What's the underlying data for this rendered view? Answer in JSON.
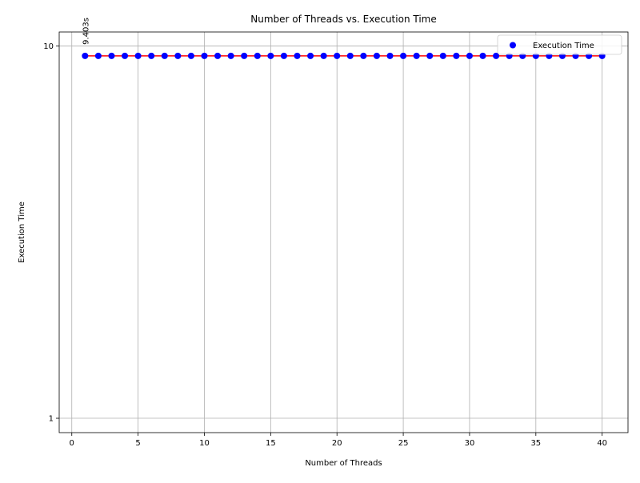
{
  "chart_data": {
    "type": "scatter",
    "title": "Number of Threads vs. Execution Time",
    "xlabel": "Number of Threads",
    "ylabel": "Execution Time",
    "xlim": [
      -0.95,
      41.95
    ],
    "ylim": [
      0.915,
      10.9
    ],
    "yscale": "log",
    "grid": true,
    "legend_position": "top-right",
    "x_ticks": [
      0,
      5,
      10,
      15,
      20,
      25,
      30,
      35,
      40
    ],
    "y_ticks": [
      1,
      10
    ],
    "series": [
      {
        "name": "Execution Time",
        "marker_color": "#0000ff",
        "x": [
          1,
          2,
          3,
          4,
          5,
          6,
          7,
          8,
          9,
          10,
          11,
          12,
          13,
          14,
          15,
          16,
          17,
          18,
          19,
          20,
          21,
          22,
          23,
          24,
          25,
          26,
          27,
          28,
          29,
          30,
          31,
          32,
          33,
          34,
          35,
          36,
          37,
          38,
          39,
          40
        ],
        "y": [
          9.403,
          9.403,
          9.403,
          9.403,
          9.403,
          9.403,
          9.403,
          9.403,
          9.403,
          9.403,
          9.403,
          9.403,
          9.403,
          9.403,
          9.403,
          9.403,
          9.403,
          9.403,
          9.403,
          9.403,
          9.403,
          9.403,
          9.403,
          9.403,
          9.403,
          9.403,
          9.403,
          9.403,
          9.403,
          9.403,
          9.403,
          9.403,
          9.403,
          9.403,
          9.403,
          9.403,
          9.403,
          9.403,
          9.403,
          9.403
        ]
      }
    ],
    "fit_line": {
      "color": "#ff0000",
      "x": [
        1,
        40
      ],
      "y": [
        9.403,
        9.403
      ]
    },
    "annotations": [
      {
        "text": "9.403s",
        "x": 1,
        "y": 9.403,
        "rotation": 90
      }
    ]
  }
}
